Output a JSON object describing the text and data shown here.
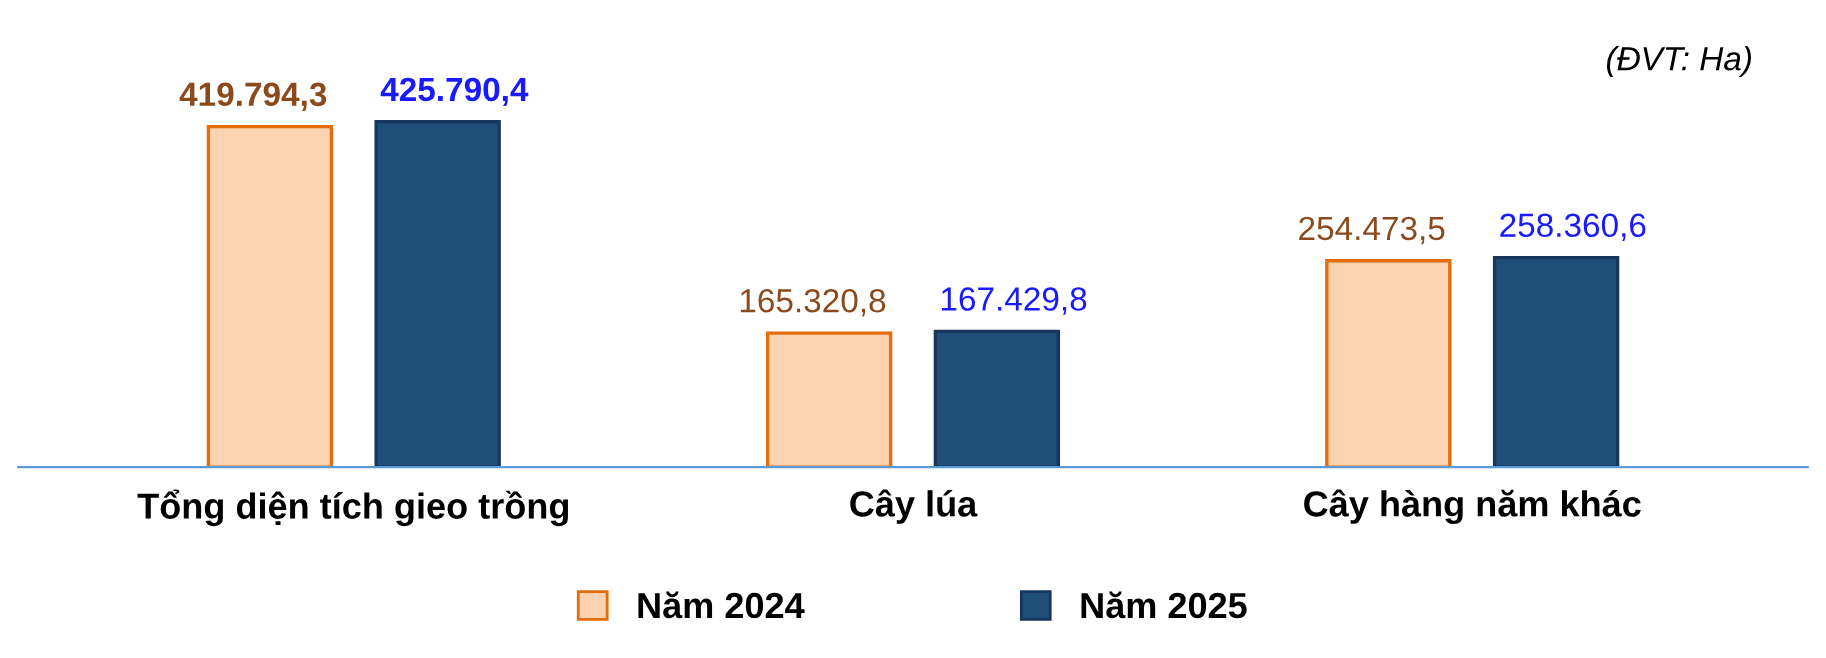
{
  "chart_data": {
    "type": "bar",
    "categories": [
      "Tổng diện tích gieo trồng",
      "Cây lúa",
      "Cây hàng năm khác"
    ],
    "series": [
      {
        "name": "Năm 2024",
        "color": "#fbd3b0",
        "values": [
          419794.3,
          165320.8,
          254473.5
        ],
        "value_labels": [
          "419.794,3",
          "165.320,8",
          "254.473,5"
        ]
      },
      {
        "name": "Năm 2025",
        "color": "#1f4e79",
        "values": [
          425790.4,
          167429.8,
          258360.6
        ],
        "value_labels": [
          "425.790,4",
          "167.429,8",
          "258.360,6"
        ]
      }
    ],
    "annotations": [
      "(ĐVT: Ha)"
    ],
    "legend": "bottom",
    "grid": false
  }
}
